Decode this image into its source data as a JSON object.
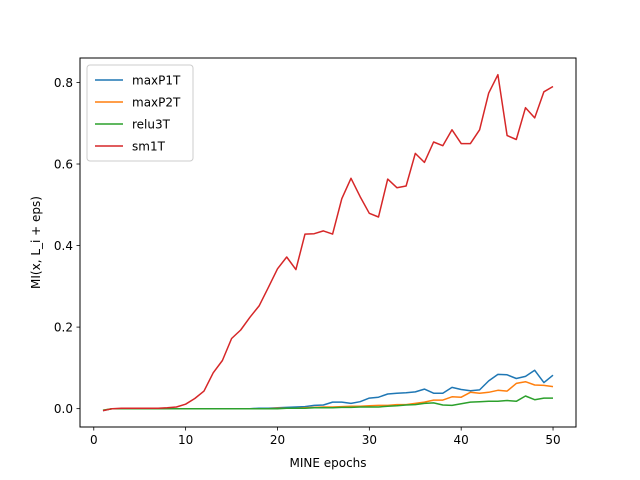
{
  "chart_data": {
    "type": "line",
    "xlabel": "MINE epochs",
    "ylabel": "MI(x, L_i + eps)",
    "xlim": [
      -1.5,
      52.5
    ],
    "ylim": [
      -0.045,
      0.86
    ],
    "xticks": [
      0,
      10,
      20,
      30,
      40,
      50
    ],
    "yticks": [
      0.0,
      0.2,
      0.4,
      0.6,
      0.8
    ],
    "grid": false,
    "legend_position": "upper-left",
    "x": [
      1,
      2,
      3,
      4,
      5,
      6,
      7,
      8,
      9,
      10,
      11,
      12,
      13,
      14,
      15,
      16,
      17,
      18,
      19,
      20,
      21,
      22,
      23,
      24,
      25,
      26,
      27,
      28,
      29,
      30,
      31,
      32,
      33,
      34,
      35,
      36,
      37,
      38,
      39,
      40,
      41,
      42,
      43,
      44,
      45,
      46,
      47,
      48,
      49,
      50
    ],
    "series": [
      {
        "name": "maxP1T",
        "color": "#1f77b4",
        "values": [
          -0.005,
          0.0,
          0.0,
          0.0,
          0.0,
          0.0,
          0.0,
          0.0,
          0.0,
          0.0,
          0.0,
          0.0,
          0.0,
          0.0,
          0.0,
          0.0,
          0.0,
          0.001,
          0.001,
          0.002,
          0.003,
          0.004,
          0.005,
          0.008,
          0.009,
          0.016,
          0.016,
          0.013,
          0.017,
          0.026,
          0.028,
          0.036,
          0.038,
          0.039,
          0.041,
          0.048,
          0.038,
          0.038,
          0.052,
          0.047,
          0.044,
          0.046,
          0.068,
          0.084,
          0.083,
          0.074,
          0.079,
          0.094,
          0.064,
          0.082
        ]
      },
      {
        "name": "maxP2T",
        "color": "#ff7f0e",
        "values": [
          -0.004,
          0.0,
          0.0,
          0.0,
          0.0,
          0.0,
          0.0,
          0.0,
          0.0,
          0.0,
          0.0,
          0.0,
          0.0,
          0.0,
          0.0,
          0.0,
          0.0,
          0.0,
          0.0,
          0.001,
          0.001,
          0.001,
          0.002,
          0.003,
          0.004,
          0.004,
          0.005,
          0.006,
          0.006,
          0.007,
          0.008,
          0.008,
          0.01,
          0.01,
          0.013,
          0.016,
          0.021,
          0.021,
          0.029,
          0.028,
          0.04,
          0.038,
          0.04,
          0.045,
          0.043,
          0.062,
          0.066,
          0.058,
          0.057,
          0.054
        ]
      },
      {
        "name": "relu3T",
        "color": "#2ca02c",
        "values": [
          -0.004,
          0.0,
          0.0,
          0.0,
          0.0,
          0.0,
          0.0,
          0.0,
          0.0,
          0.0,
          0.0,
          0.0,
          0.0,
          0.0,
          0.0,
          0.0,
          0.0,
          0.0,
          0.0,
          0.0,
          0.001,
          0.001,
          0.001,
          0.002,
          0.002,
          0.002,
          0.003,
          0.003,
          0.004,
          0.004,
          0.004,
          0.006,
          0.007,
          0.009,
          0.01,
          0.013,
          0.014,
          0.009,
          0.008,
          0.012,
          0.016,
          0.017,
          0.018,
          0.018,
          0.02,
          0.018,
          0.031,
          0.022,
          0.026,
          0.026
        ]
      },
      {
        "name": "sm1T",
        "color": "#d62728",
        "values": [
          -0.005,
          0.0,
          0.001,
          0.001,
          0.001,
          0.001,
          0.001,
          0.002,
          0.004,
          0.011,
          0.025,
          0.043,
          0.088,
          0.118,
          0.172,
          0.193,
          0.224,
          0.252,
          0.297,
          0.343,
          0.372,
          0.341,
          0.428,
          0.429,
          0.436,
          0.428,
          0.515,
          0.565,
          0.52,
          0.479,
          0.47,
          0.563,
          0.542,
          0.546,
          0.626,
          0.604,
          0.654,
          0.645,
          0.684,
          0.65,
          0.65,
          0.684,
          0.774,
          0.819,
          0.67,
          0.66,
          0.738,
          0.713,
          0.777,
          0.79
        ]
      }
    ]
  }
}
